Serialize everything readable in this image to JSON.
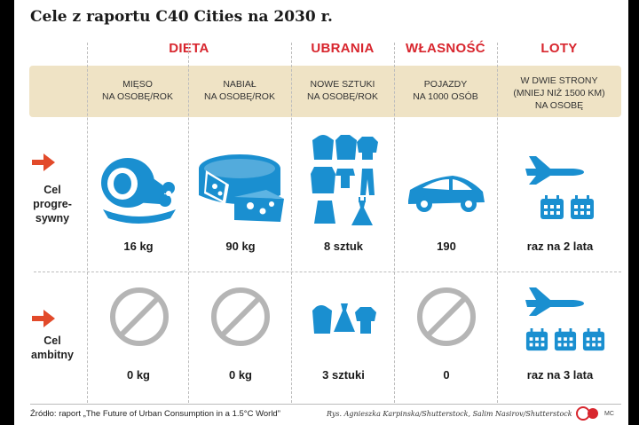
{
  "title": "Cele z raportu C40 Cities na 2030 r.",
  "categories": [
    "DIETA",
    "UBRANIA",
    "WŁASNOŚĆ",
    "LOTY"
  ],
  "subheaders": {
    "meat": "MIĘSO\nNA OSOBĘ/ROK",
    "dairy": "NABIAŁ\nNA OSOBĘ/ROK",
    "clothes": "NOWE SZTUKI\nNA OSOBĘ/ROK",
    "vehicles": "POJAZDY\nNA 1000 OSÓB",
    "flights": "W DWIE STRONY\n(MNIEJ NIŻ 1500 KM)\nNA OSOBĘ"
  },
  "rows": {
    "progressive": {
      "label": "Cel\nprogre-\nsywny",
      "values": {
        "meat": "16 kg",
        "dairy": "90 kg",
        "clothes": "8 sztuk",
        "vehicles": "190",
        "flights": "raz na 2 lata"
      }
    },
    "ambitious": {
      "label": "Cel\nambitny",
      "values": {
        "meat": "0 kg",
        "dairy": "0 kg",
        "clothes": "3 sztuki",
        "vehicles": "0",
        "flights": "raz na 3 lata"
      }
    }
  },
  "footer": {
    "source": "Źródło: raport „The Future of Urban Consumption in a 1.5°C World”",
    "credits": "Rys. Agnieszka Karpinska/Shutterstock, Salim Nasirov/Shutterstock",
    "logo": "©P",
    "initials": "MC"
  },
  "colors": {
    "accent_red": "#d8262e",
    "icon_blue": "#1a8fd0",
    "band_beige": "#efe3c5",
    "no_sign_gray": "#b5b5b5"
  },
  "icons": [
    "arrow-right-icon",
    "ham-icon",
    "cheese-icon",
    "clothing-icon",
    "car-icon",
    "airplane-icon",
    "calendar-icon",
    "prohibited-icon"
  ]
}
